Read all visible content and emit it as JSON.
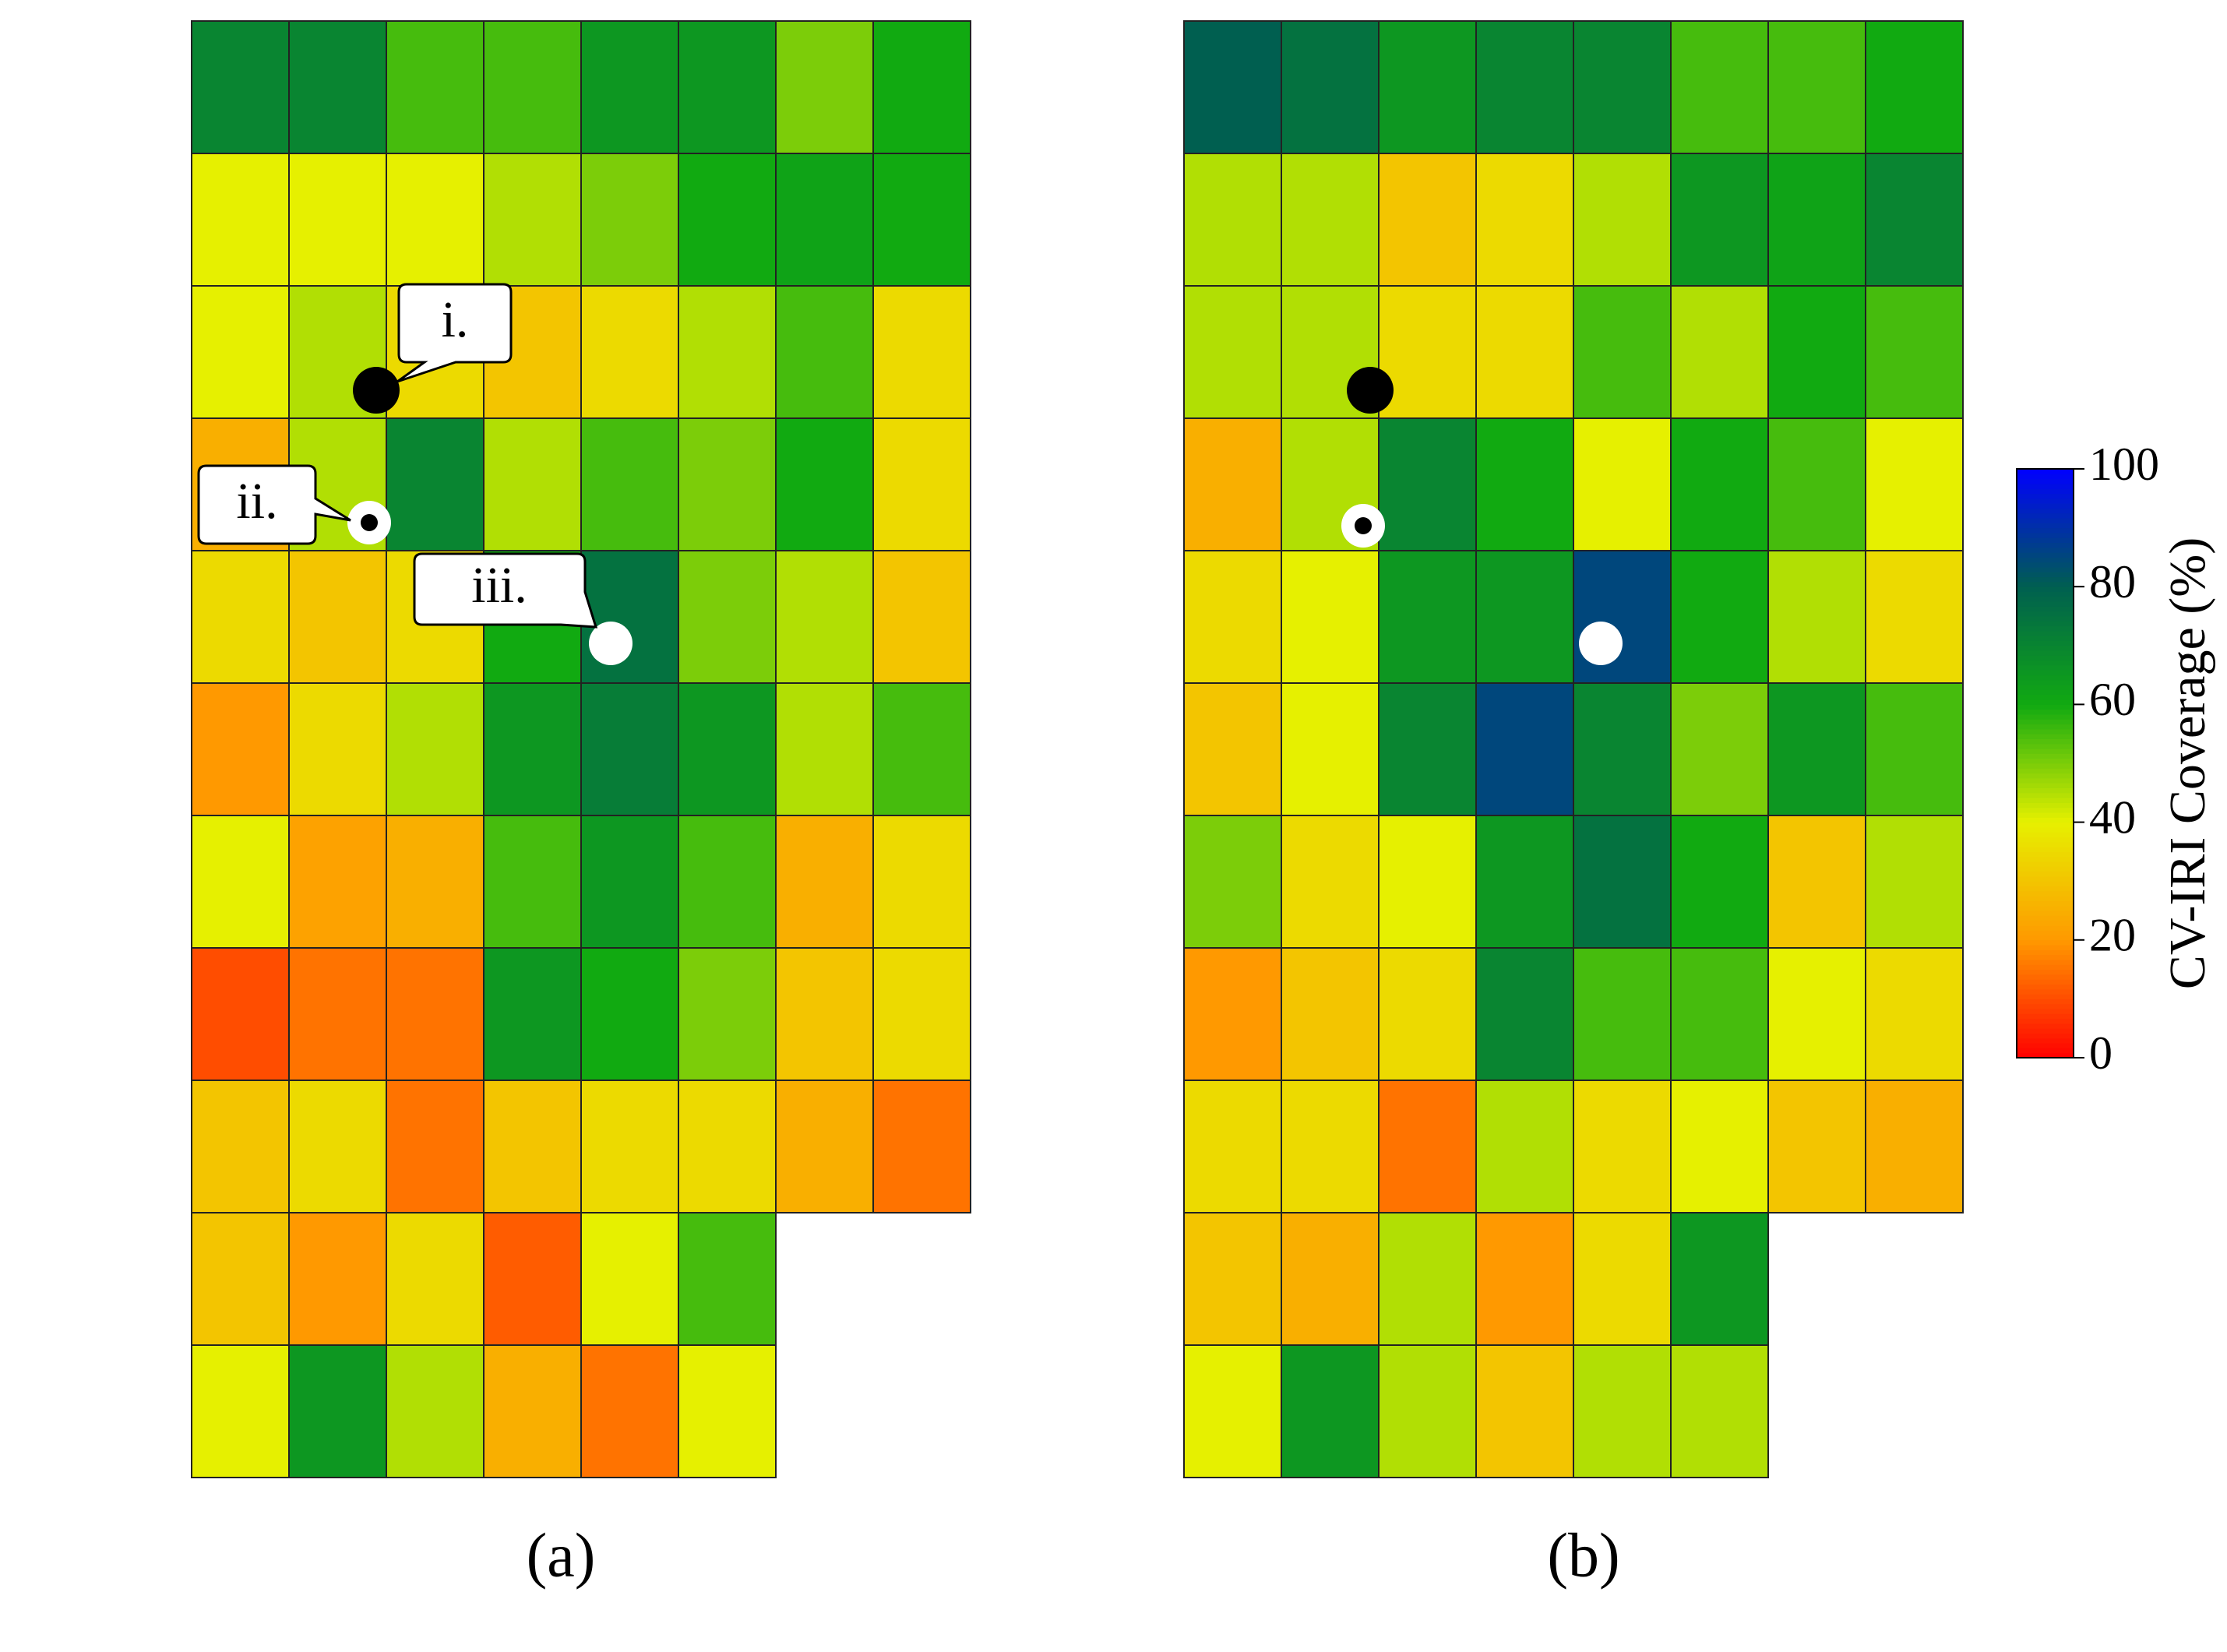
{
  "panels": [
    {
      "label": "(a)",
      "values": [
        [
          70,
          70,
          55,
          55,
          65,
          65,
          50,
          60
        ],
        [
          40,
          40,
          40,
          45,
          50,
          60,
          62,
          60
        ],
        [
          40,
          45,
          35,
          30,
          35,
          45,
          55,
          35
        ],
        [
          25,
          45,
          70,
          45,
          55,
          50,
          60,
          35
        ],
        [
          35,
          30,
          35,
          60,
          75,
          50,
          45,
          30
        ],
        [
          20,
          35,
          45,
          65,
          72,
          65,
          45,
          55
        ],
        [
          40,
          22,
          25,
          55,
          65,
          55,
          25,
          35
        ],
        [
          10,
          15,
          15,
          65,
          60,
          50,
          30,
          35
        ],
        [
          30,
          35,
          15,
          30,
          35,
          35,
          25,
          15
        ],
        [
          30,
          20,
          35,
          12,
          40,
          55,
          null,
          null
        ],
        [
          40,
          65,
          45,
          25,
          15,
          40,
          null,
          null
        ]
      ]
    },
    {
      "label": "(b)",
      "values": [
        [
          80,
          75,
          65,
          70,
          70,
          55,
          55,
          60
        ],
        [
          45,
          45,
          30,
          35,
          45,
          65,
          62,
          70
        ],
        [
          45,
          45,
          35,
          35,
          55,
          45,
          60,
          55
        ],
        [
          25,
          45,
          70,
          60,
          40,
          60,
          55,
          40
        ],
        [
          35,
          40,
          65,
          65,
          85,
          60,
          45,
          35
        ],
        [
          30,
          40,
          70,
          85,
          70,
          50,
          65,
          55
        ],
        [
          50,
          35,
          40,
          65,
          75,
          60,
          30,
          45
        ],
        [
          20,
          30,
          35,
          70,
          55,
          55,
          40,
          35
        ],
        [
          35,
          35,
          15,
          45,
          35,
          40,
          30,
          25
        ],
        [
          30,
          25,
          45,
          20,
          35,
          65,
          null,
          null
        ],
        [
          40,
          65,
          45,
          30,
          45,
          45,
          null,
          null
        ]
      ]
    }
  ],
  "callouts": [
    "i.",
    "ii.",
    "iii."
  ],
  "colorbar": {
    "label": "CV-IRI Coverage (%)",
    "lim": [
      0,
      100
    ],
    "ticks": [
      0,
      20,
      40,
      60,
      80,
      100
    ],
    "colors": [
      "#ff0000",
      "#ff9900",
      "#e6f000",
      "#11aa11",
      "#005f50",
      "#0000ff"
    ]
  }
}
